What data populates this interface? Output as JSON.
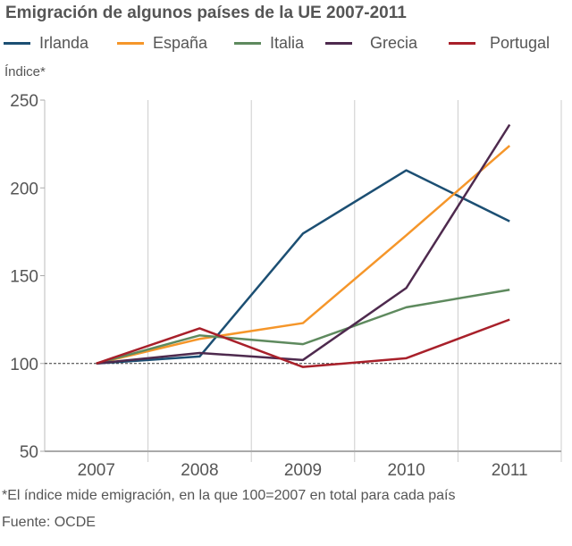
{
  "chart_data": {
    "type": "line",
    "title": "Emigración de algunos países de la UE 2007-2011",
    "ylabel": "Índice*",
    "xlabel": "",
    "categories": [
      "2007",
      "2008",
      "2009",
      "2010",
      "2011"
    ],
    "ylim": [
      50,
      250
    ],
    "yticks": [
      "50",
      "100",
      "150",
      "200",
      "250"
    ],
    "grid": "vertical",
    "reference_line": 100,
    "legend": "top",
    "series": [
      {
        "name": "Irlanda",
        "color": "#1c4f73",
        "values": [
          100,
          104,
          174,
          210,
          181
        ]
      },
      {
        "name": "España",
        "color": "#f5962a",
        "values": [
          100,
          114,
          123,
          173,
          224
        ]
      },
      {
        "name": "Italia",
        "color": "#5e8a5e",
        "values": [
          100,
          116,
          111,
          132,
          142
        ]
      },
      {
        "name": "Grecia",
        "color": "#4e2a4e",
        "values": [
          100,
          106,
          102,
          143,
          236
        ]
      },
      {
        "name": "Portugal",
        "color": "#a8202a",
        "values": [
          100,
          120,
          98,
          103,
          125
        ]
      }
    ],
    "note": "*El índice mide emigración, en la que 100=2007 en total para cada país",
    "source": "Fuente: OCDE"
  }
}
